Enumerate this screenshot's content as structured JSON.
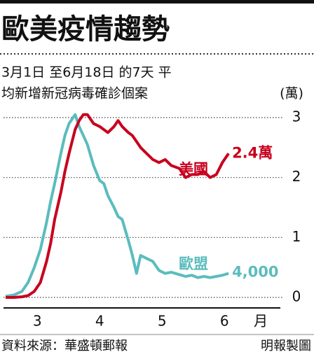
{
  "chart_data": {
    "type": "line",
    "title": "歐美疫情趨勢",
    "subtitle": [
      "3月1日 至6月18日 的7天 平",
      "均新增新冠病毒確診個案"
    ],
    "y_label": "(萬)",
    "x_label": "月",
    "source": "資料來源：華盛頓郵報",
    "credit": "明報製圖",
    "x": [
      0,
      4,
      8,
      11,
      14,
      17,
      20,
      22,
      24,
      27,
      29,
      31,
      34,
      36,
      38,
      40,
      43,
      46,
      48,
      50,
      53,
      55,
      57,
      60,
      62,
      64,
      66,
      69,
      72,
      75,
      78,
      81,
      85,
      88,
      91,
      94,
      97,
      100,
      103,
      106,
      109
    ],
    "xlim": [
      0,
      122
    ],
    "xticks": [
      {
        "value": 15.5,
        "label": "3"
      },
      {
        "value": 46,
        "label": "4"
      },
      {
        "value": 76.5,
        "label": "5"
      },
      {
        "value": 107,
        "label": "6"
      }
    ],
    "ylim": [
      0,
      3
    ],
    "yticks": [
      0,
      1,
      2,
      3
    ],
    "grid": true,
    "series": [
      {
        "name": "美國",
        "color": "#c8001e",
        "values": [
          0,
          0,
          0.01,
          0.03,
          0.1,
          0.25,
          0.6,
          0.9,
          1.3,
          1.75,
          2.1,
          2.4,
          2.8,
          2.95,
          3.05,
          3.05,
          2.9,
          2.85,
          2.8,
          2.75,
          2.85,
          2.95,
          2.85,
          2.75,
          2.7,
          2.6,
          2.5,
          2.4,
          2.3,
          2.25,
          2.3,
          2.2,
          2.15,
          2.0,
          2.05,
          2.05,
          2.1,
          2.0,
          2.05,
          2.25,
          2.4
        ],
        "end_label": 2.4,
        "end_value_label": "2.4萬"
      },
      {
        "name": "歐盟",
        "color": "#5bbcbd",
        "values": [
          0.02,
          0.04,
          0.1,
          0.25,
          0.5,
          0.8,
          1.25,
          1.6,
          1.9,
          2.4,
          2.7,
          2.9,
          3.05,
          2.85,
          2.7,
          2.55,
          2.2,
          1.95,
          1.9,
          1.7,
          1.5,
          1.35,
          1.3,
          0.95,
          0.7,
          0.4,
          0.7,
          0.65,
          0.6,
          0.45,
          0.4,
          0.42,
          0.38,
          0.35,
          0.37,
          0.33,
          0.35,
          0.33,
          0.35,
          0.37,
          0.4
        ],
        "end_label": 0.4,
        "end_value_label": "4,000"
      }
    ]
  }
}
